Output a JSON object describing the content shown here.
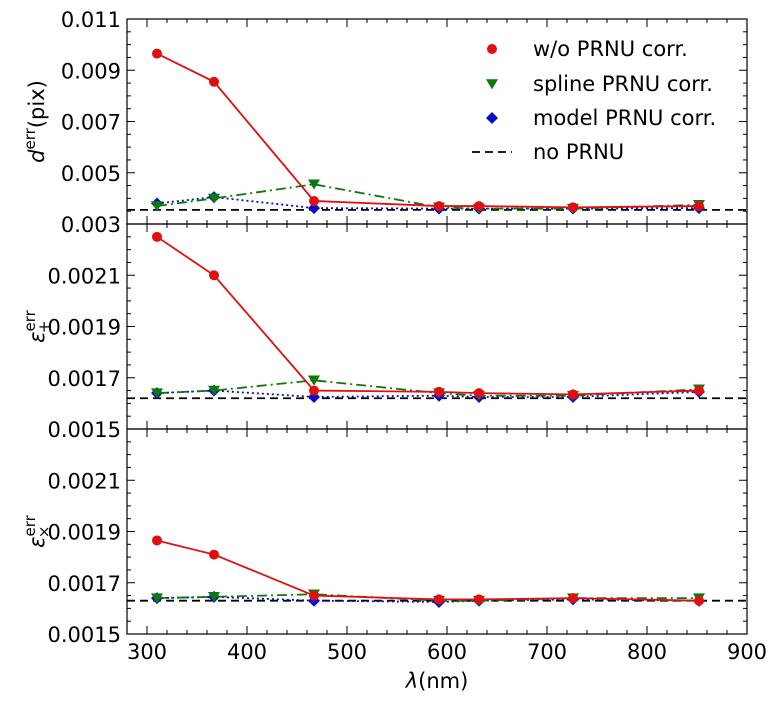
{
  "chart_data": {
    "type": "line",
    "xlabel_var": "λ",
    "xlabel_unit": "(nm)",
    "xlim": [
      280,
      900
    ],
    "xticks": [
      "300",
      "400",
      "500",
      "600",
      "700",
      "800",
      "900"
    ],
    "x": [
      310,
      367,
      467,
      592,
      632,
      726,
      852
    ],
    "legend": {
      "placement": "top-right",
      "entries": [
        {
          "series": "wo",
          "label": "w/o PRNU corr."
        },
        {
          "series": "spline",
          "label": "spline PRNU corr."
        },
        {
          "series": "model",
          "label": "model PRNU corr."
        },
        {
          "series": "noprnu",
          "label": "no PRNU"
        }
      ]
    },
    "series_styles": {
      "wo": {
        "color": "#e01010",
        "dash": "",
        "marker": "circle"
      },
      "spline": {
        "color": "#0a7a0a",
        "dash": "10 4 2 4",
        "marker": "triangle-down"
      },
      "model": {
        "color": "#0b0bd0",
        "dash": "2 3",
        "marker": "diamond"
      },
      "noprnu": {
        "color": "#000000",
        "dash": "8 5",
        "marker": "none"
      }
    },
    "panels": [
      {
        "ylabel_base": "d",
        "ylabel_sup": "err",
        "ylabel_sub": "",
        "ylabel_unit": "(pix)",
        "ylim": [
          0.003,
          0.011
        ],
        "yticks": [
          "0.003",
          "0.005",
          "0.007",
          "0.009",
          "0.011"
        ],
        "series": [
          {
            "key": "wo",
            "values": [
              0.00965,
              0.00855,
              0.0039,
              0.0037,
              0.0037,
              0.00365,
              0.0037
            ]
          },
          {
            "key": "spline",
            "values": [
              0.0037,
              0.004,
              0.00455,
              0.00365,
              0.0036,
              0.0036,
              0.00375
            ]
          },
          {
            "key": "model",
            "values": [
              0.0038,
              0.00405,
              0.00362,
              0.0036,
              0.0036,
              0.0036,
              0.00362
            ]
          }
        ],
        "hline": 0.00355
      },
      {
        "ylabel_base": "ε",
        "ylabel_sup": "err",
        "ylabel_sub": "+",
        "ylabel_unit": "",
        "ylim": [
          0.0015,
          0.0023
        ],
        "yticks": [
          "0.0015",
          "0.0017",
          "0.0019",
          "0.0021"
        ],
        "series": [
          {
            "key": "wo",
            "values": [
              0.00225,
              0.0021,
              0.00165,
              0.001645,
              0.00164,
              0.001635,
              0.00165
            ]
          },
          {
            "key": "spline",
            "values": [
              0.00164,
              0.00165,
              0.00169,
              0.00164,
              0.00163,
              0.00163,
              0.001655
            ]
          },
          {
            "key": "model",
            "values": [
              0.00164,
              0.00165,
              0.001625,
              0.00163,
              0.001625,
              0.001625,
              0.001645
            ]
          }
        ],
        "hline": 0.00162
      },
      {
        "ylabel_base": "ε",
        "ylabel_sup": "err",
        "ylabel_sub": "×",
        "ylabel_unit": "",
        "ylim": [
          0.0015,
          0.0023
        ],
        "yticks": [
          "0.0015",
          "0.0017",
          "0.0019",
          "0.0021"
        ],
        "series": [
          {
            "key": "wo",
            "values": [
              0.001865,
              0.00181,
              0.00165,
              0.001635,
              0.001635,
              0.00164,
              0.00163
            ]
          },
          {
            "key": "spline",
            "values": [
              0.00164,
              0.001645,
              0.001655,
              0.00163,
              0.00163,
              0.00164,
              0.00164
            ]
          },
          {
            "key": "model",
            "values": [
              0.00164,
              0.001645,
              0.00163,
              0.001625,
              0.00163,
              0.001635,
              0.00163
            ]
          }
        ],
        "hline": 0.00163
      }
    ]
  }
}
